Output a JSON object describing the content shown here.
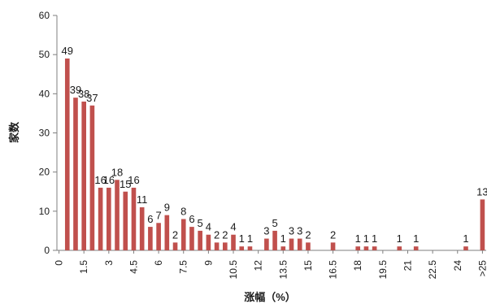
{
  "chart_data": {
    "type": "bar",
    "title": "",
    "xlabel": "涨幅（%）",
    "ylabel": "家数",
    "ylim": [
      0,
      60
    ],
    "yticks": [
      0,
      10,
      20,
      30,
      40,
      50,
      60
    ],
    "grid": false,
    "legend": "none",
    "bar_color": "#C0504D",
    "categories": [
      "0",
      "0.5",
      "1",
      "1.5",
      "2",
      "2.5",
      "3",
      "3.5",
      "4",
      "4.5",
      "5",
      "5.5",
      "6",
      "6.5",
      "7",
      "7.5",
      "8",
      "8.5",
      "9",
      "9.5",
      "10",
      "10.5",
      "11",
      "11.5",
      "12",
      "12.5",
      "13",
      "13.5",
      "14",
      "14.5",
      "15",
      "15.5",
      "16",
      "16.5",
      "17",
      "17.5",
      "18",
      "18.5",
      "19",
      "19.5",
      "20",
      "20.5",
      "21",
      "21.5",
      "22",
      "22.5",
      "23",
      "23.5",
      "24",
      "24.5",
      "25",
      ">25"
    ],
    "xtick_labels": [
      "0",
      "1.5",
      "3",
      "4.5",
      "6",
      "7.5",
      "9",
      "10.5",
      "12",
      "13.5",
      "15",
      "16.5",
      "18",
      "19.5",
      "21",
      "22.5",
      "24",
      ">25"
    ],
    "series": [
      {
        "values": [
          0,
          49,
          39,
          38,
          37,
          16,
          16,
          18,
          15,
          16,
          11,
          6,
          7,
          9,
          2,
          8,
          6,
          5,
          4,
          2,
          2,
          4,
          1,
          1,
          0,
          3,
          5,
          1,
          3,
          3,
          2,
          0,
          0,
          2,
          0,
          0,
          1,
          1,
          1,
          0,
          0,
          1,
          0,
          1,
          0,
          0,
          0,
          0,
          0,
          1,
          0,
          13
        ]
      }
    ]
  }
}
